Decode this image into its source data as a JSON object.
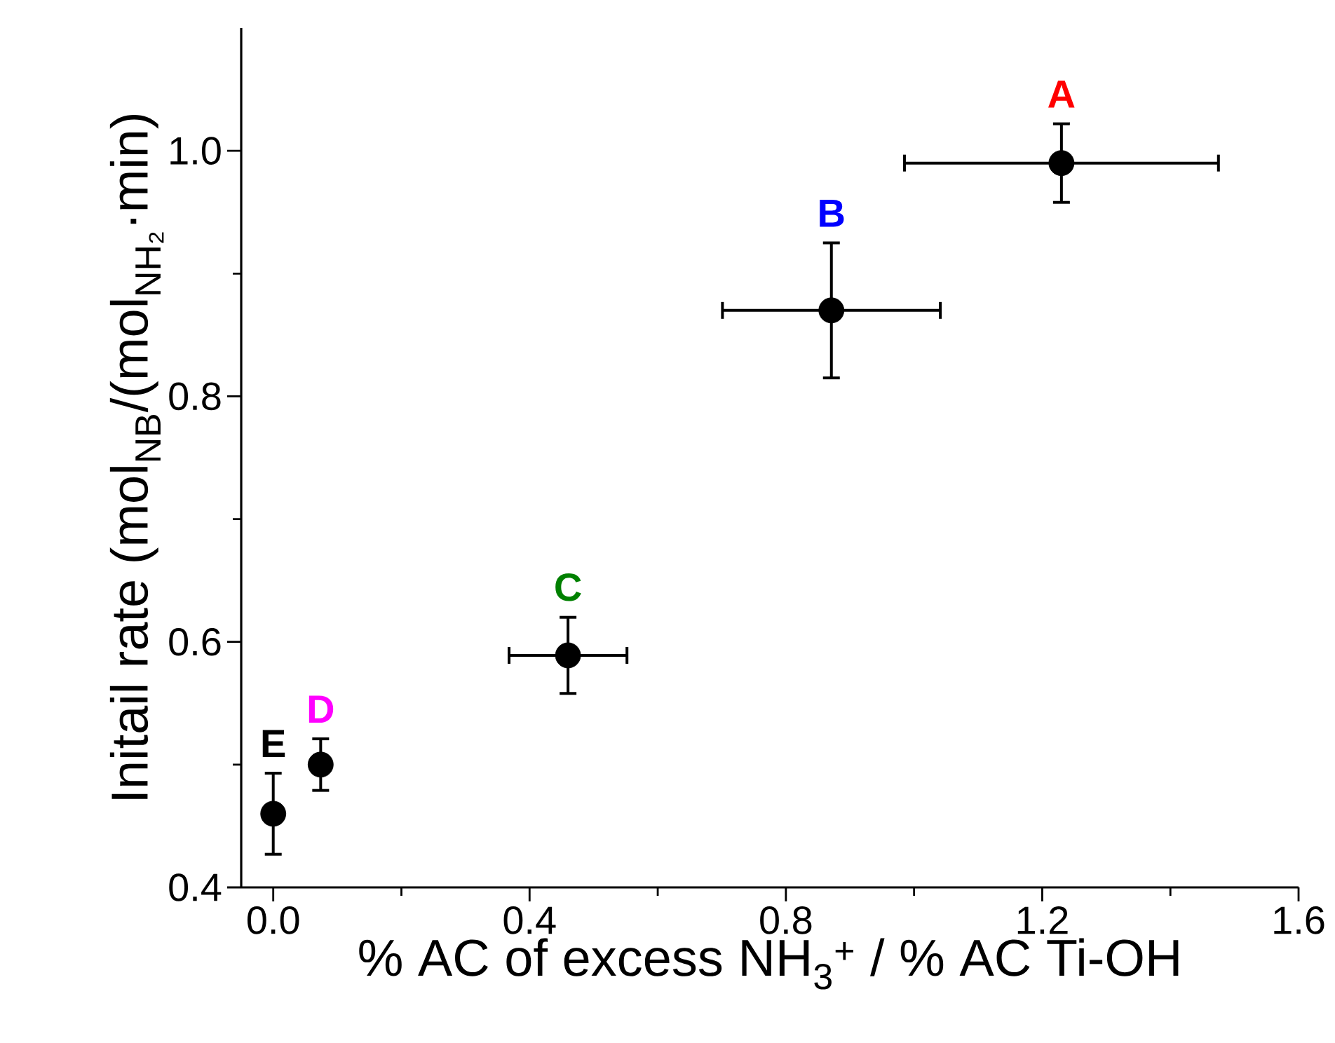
{
  "chart_data": {
    "type": "scatter",
    "xlabel": "% AC of excess NH$_{3}$$^{+}$ / % AC Ti-OH",
    "ylabel": "Initail rate (mol$_{NB}$/(mol$_{NH₂}$·min)",
    "x": [
      1.23,
      0.871,
      0.46,
      0.074,
      0.0
    ],
    "values": [
      0.99,
      0.87,
      0.589,
      0.5,
      0.46
    ],
    "errors": [
      0.032,
      0.055,
      0.031,
      0.021,
      0.033
    ],
    "xerrors": [
      0.245,
      0.17,
      0.092,
      null,
      null
    ],
    "color": "#000000",
    "xlim": [
      -0.05,
      1.6
    ],
    "ylim": [
      0.4,
      1.1
    ],
    "xticks": [
      {
        "value": 0,
        "label": "0.0"
      },
      0.4,
      0.8,
      1.2,
      1.6
    ],
    "yticks": [
      0.4,
      0.6,
      0.8,
      {
        "value": 1.0,
        "label": "1.0"
      }
    ],
    "grid": false,
    "legend": false,
    "annotations": [
      {
        "text": "A",
        "x": 1.23,
        "y": 0.99
      },
      {
        "text": "B",
        "x": 0.871,
        "y": 0.87
      },
      {
        "text": "C",
        "x": 0.46,
        "y": 0.589
      },
      {
        "text": "D",
        "x": 0.074,
        "y": 0.5
      },
      {
        "text": "E",
        "x": 0.0,
        "y": 0.46
      }
    ]
  }
}
